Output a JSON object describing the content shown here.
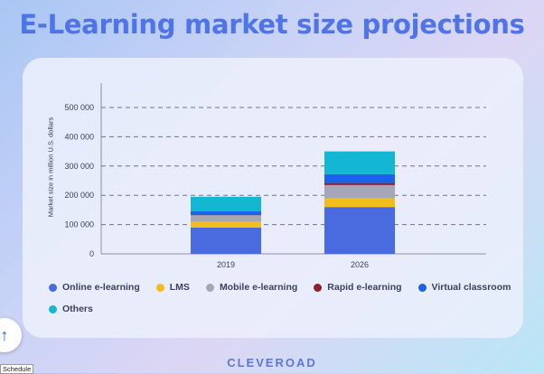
{
  "chart_data": {
    "type": "bar",
    "stacked": true,
    "title": "E-Learning market size projections",
    "ylabel": "Market size in million U.S. dollars",
    "xlabel": "",
    "ylim": [
      0,
      500000
    ],
    "yticks": [
      0,
      100000,
      200000,
      300000,
      400000,
      500000
    ],
    "ytick_labels": [
      "0",
      "100 000",
      "200 000",
      "300 000",
      "400 000",
      "500 000"
    ],
    "grid": true,
    "legend_position": "bottom",
    "categories": [
      "2019",
      "2026"
    ],
    "series": [
      {
        "name": "Online e-learning",
        "color": "#4a6be0",
        "values": [
          90000,
          160000
        ]
      },
      {
        "name": "LMS",
        "color": "#f0bd1c",
        "values": [
          20000,
          30000
        ]
      },
      {
        "name": "Mobile e-learning",
        "color": "#a3a7b8",
        "values": [
          22000,
          45000
        ]
      },
      {
        "name": "Rapid e-learning",
        "color": "#8e1f2b",
        "values": [
          3000,
          7000
        ]
      },
      {
        "name": "Virtual classroom",
        "color": "#1b62ea",
        "values": [
          10000,
          30000
        ]
      },
      {
        "name": "Others",
        "color": "#13b7d3",
        "values": [
          50000,
          78000
        ]
      }
    ]
  },
  "brand": "CLEVEROAD",
  "ui": {
    "scroll_top_icon": "↑",
    "schedule_label": "Schedule"
  }
}
